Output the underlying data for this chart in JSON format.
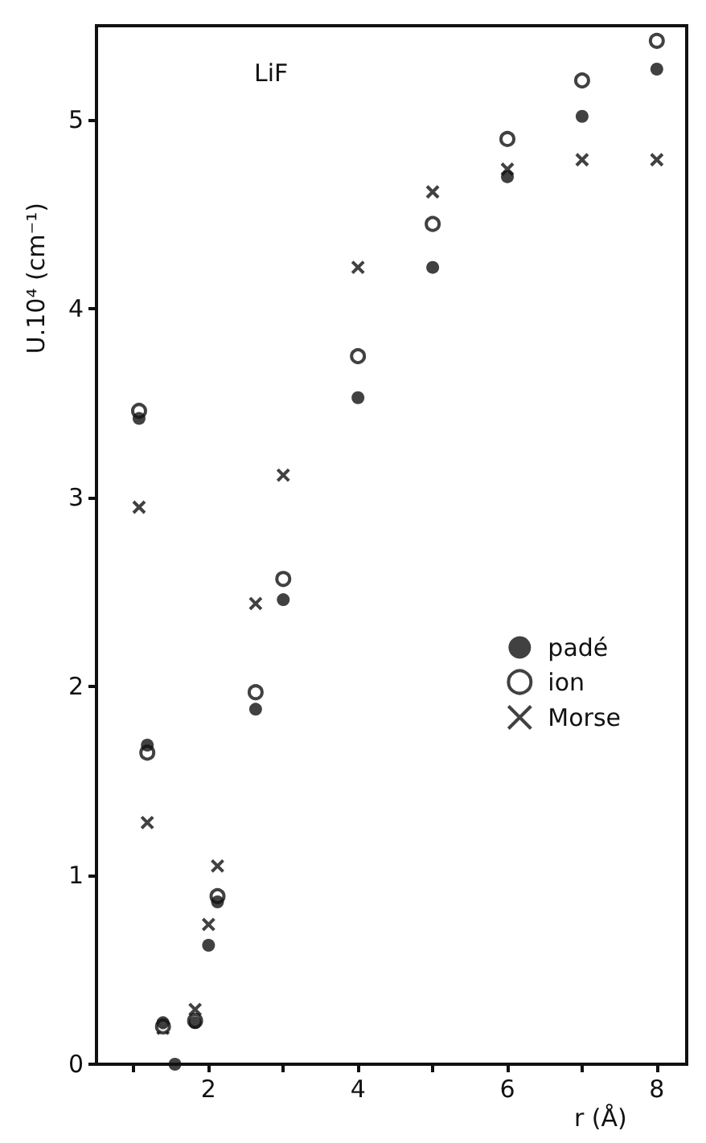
{
  "chart_data": {
    "type": "scatter",
    "xlabel": "r (Å)",
    "ylabel": "U.10⁴ (cm⁻¹)",
    "annotations": [
      "LiF"
    ],
    "x": [
      1.07,
      1.18,
      1.39,
      1.55,
      1.82,
      2.0,
      2.12,
      2.63,
      3.0,
      4,
      5,
      6,
      7,
      8
    ],
    "series": [
      {
        "name": "padé",
        "color": "#111111",
        "marker": "circle",
        "values": [
          3.42,
          1.69,
          0.22,
          0.0,
          0.22,
          0.63,
          0.86,
          1.88,
          2.46,
          3.53,
          4.22,
          4.7,
          5.02,
          5.27
        ]
      },
      {
        "name": "ion",
        "color": "#111111",
        "marker": "open-circle",
        "values": [
          3.46,
          1.65,
          0.2,
          null,
          0.23,
          null,
          0.89,
          1.97,
          2.57,
          3.75,
          4.45,
          4.9,
          5.21,
          5.42
        ]
      },
      {
        "name": "Morse",
        "color": "#111111",
        "marker": "cross",
        "values": [
          2.95,
          1.28,
          0.19,
          null,
          0.29,
          0.74,
          1.05,
          2.44,
          3.12,
          4.22,
          4.62,
          4.74,
          4.79,
          4.79
        ]
      }
    ],
    "xlim": [
      0.5,
      8.4
    ],
    "xticks": [
      {
        "value": 1,
        "label": null
      },
      2,
      {
        "value": 3,
        "label": null
      },
      4,
      {
        "value": 5,
        "label": null
      },
      6,
      {
        "value": 7,
        "label": null
      },
      8
    ],
    "ylim": [
      0,
      5.5
    ],
    "yticks": [
      0,
      1,
      2,
      3,
      4,
      5
    ],
    "grid": false,
    "legend": "right"
  }
}
